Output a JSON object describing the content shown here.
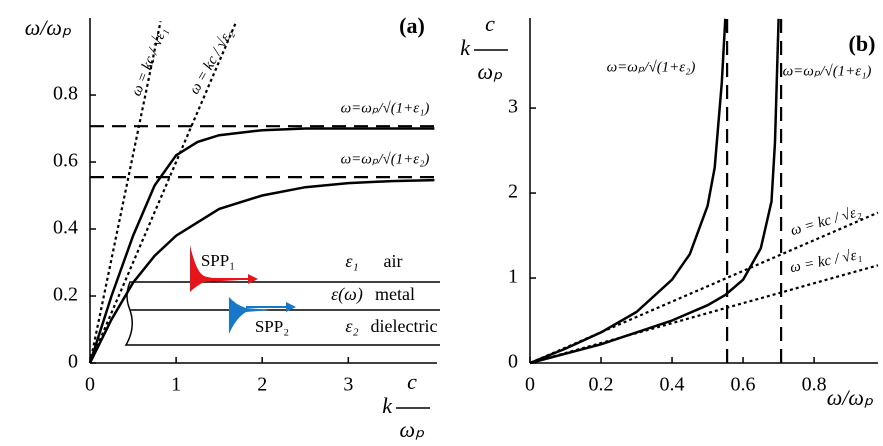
{
  "chart_data": [
    {
      "type": "line",
      "title": "(a)",
      "xlabel": [
        "k",
        "c",
        "ωₚ"
      ],
      "ylabel": "ω/ωₚ",
      "xlim": [
        0,
        4.03
      ],
      "ylim": [
        0,
        1.03
      ],
      "xticks": [
        0,
        1,
        2,
        3
      ],
      "yticks": [
        0,
        0.2,
        0.4,
        0.6,
        0.8
      ],
      "series": [
        {
          "label": "ω = kc / √ε₁",
          "style": "dotted",
          "color": "#000000",
          "x": [
            0,
            0.82
          ],
          "values": [
            0,
            1.02
          ]
        },
        {
          "label": "ω = kc / √ε₂",
          "style": "dotted",
          "color": "#000000",
          "x": [
            0,
            1.7
          ],
          "values": [
            0,
            1.02
          ]
        },
        {
          "label": "ω=ωₚ/√(1+ε₁)",
          "style": "dashed",
          "color": "#000000",
          "x": [
            0,
            4.03
          ],
          "values": [
            0.707,
            0.707
          ]
        },
        {
          "label": "ω=ωₚ/√(1+ε₂)",
          "style": "dashed",
          "color": "#000000",
          "x": [
            0,
            4.03
          ],
          "values": [
            0.555,
            0.555
          ]
        },
        {
          "style": "solid",
          "color": "#000000",
          "x": [
            0,
            0.25,
            0.5,
            0.75,
            1,
            1.25,
            1.5,
            2,
            2.5,
            3,
            3.5,
            4
          ],
          "values": [
            0,
            0.2,
            0.38,
            0.53,
            0.62,
            0.66,
            0.68,
            0.695,
            0.7,
            0.7,
            0.7,
            0.7
          ]
        },
        {
          "style": "solid",
          "color": "#000000",
          "x": [
            0,
            0.25,
            0.5,
            0.75,
            1,
            1.5,
            2,
            2.5,
            3,
            3.5,
            4
          ],
          "values": [
            0,
            0.13,
            0.24,
            0.32,
            0.38,
            0.46,
            0.5,
            0.525,
            0.537,
            0.543,
            0.546
          ]
        }
      ],
      "inset": {
        "spp1": {
          "label": "SPP₁",
          "color": "#e8141b"
        },
        "spp2": {
          "label": "SPP₂",
          "color": "#1878c8"
        },
        "media": [
          {
            "symbol": "ε₁",
            "name": "air"
          },
          {
            "symbol": "ε(ω)",
            "name": "metal"
          },
          {
            "symbol": "ε₂",
            "name": "dielectric"
          }
        ]
      }
    },
    {
      "type": "line",
      "title": "(b)",
      "xlabel": "ω/ωₚ",
      "ylabel": [
        "k",
        "c",
        "ωₚ"
      ],
      "xlim": [
        0,
        0.98
      ],
      "ylim": [
        0,
        4.06
      ],
      "xticks": [
        0,
        0.2,
        0.4,
        0.6,
        0.8
      ],
      "yticks": [
        0,
        1,
        2,
        3
      ],
      "series": [
        {
          "label": "ω=ωₚ/√(1+ε₂)",
          "style": "dashed",
          "color": "#000000",
          "x": [
            0.555,
            0.555
          ],
          "values": [
            0,
            4.06
          ]
        },
        {
          "label": "ω=ωₚ/√(1+ε₁)",
          "style": "dashed",
          "color": "#000000",
          "x": [
            0.707,
            0.707
          ],
          "values": [
            0,
            4.06
          ]
        },
        {
          "label": "ω = kc / √ε₂",
          "style": "dotted",
          "color": "#000000",
          "x": [
            0,
            0.98
          ],
          "values": [
            0,
            1.77
          ]
        },
        {
          "label": "ω = kc / √ε₁",
          "style": "dotted",
          "color": "#000000",
          "x": [
            0,
            0.98
          ],
          "values": [
            0,
            1.15
          ]
        },
        {
          "style": "solid",
          "color": "#000000",
          "x": [
            0,
            0.1,
            0.2,
            0.3,
            0.4,
            0.45,
            0.5,
            0.52,
            0.54,
            0.55
          ],
          "values": [
            0,
            0.17,
            0.36,
            0.6,
            0.98,
            1.28,
            1.85,
            2.3,
            3.3,
            4.05
          ]
        },
        {
          "style": "solid",
          "color": "#000000",
          "x": [
            0,
            0.2,
            0.4,
            0.5,
            0.55,
            0.6,
            0.65,
            0.68,
            0.69,
            0.7
          ],
          "values": [
            0,
            0.22,
            0.5,
            0.68,
            0.8,
            0.98,
            1.35,
            1.9,
            2.6,
            4.05
          ]
        }
      ]
    }
  ]
}
